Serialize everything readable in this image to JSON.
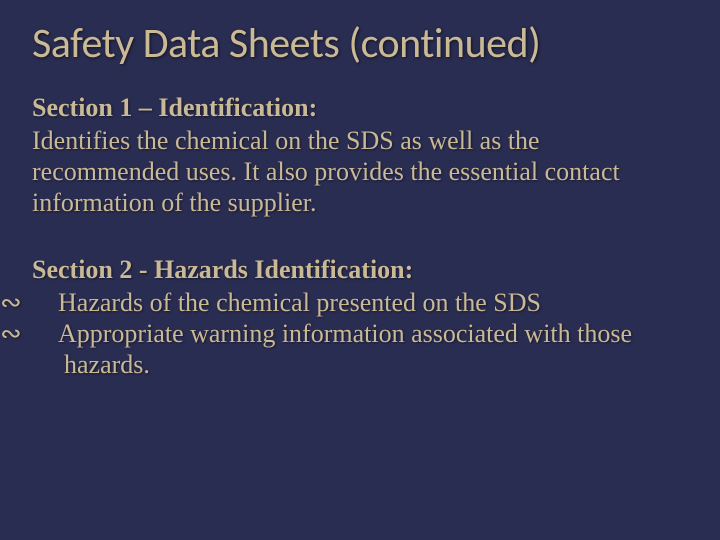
{
  "colors": {
    "background": "#2a2d52",
    "text": "#c9b995"
  },
  "typography": {
    "title_fontsize": 42,
    "title_family": "Calibri",
    "heading_fontsize": 26,
    "body_fontsize": 26,
    "body_family": "Georgia"
  },
  "slide": {
    "title": "Safety Data Sheets (continued)",
    "sections": [
      {
        "heading": "Section 1 – Identification:",
        "body": "Identifies the chemical on the SDS as well as the recommended uses. It also provides the essential contact information of the supplier.",
        "bullets": []
      },
      {
        "heading": "Section 2 - Hazards Identification:",
        "body": "",
        "bullets": [
          "Hazards of the chemical presented on the SDS",
          "Appropriate warning information associated with those hazards."
        ]
      }
    ],
    "bullet_glyph": "∾"
  }
}
